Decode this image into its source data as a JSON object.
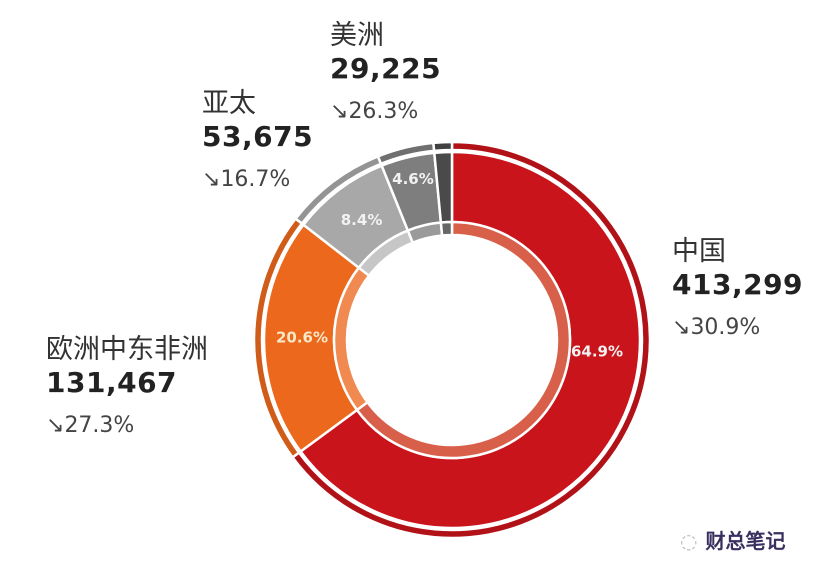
{
  "chart_data": {
    "type": "pie",
    "donut": true,
    "start": "12 o'clock, clockwise",
    "slices": [
      {
        "name": "中国",
        "value": 413299,
        "percent_label": "64.9%",
        "percent": 64.9,
        "change": "30.9%",
        "trend": "down",
        "color": "#c8141a",
        "inner_color": "#d8604a"
      },
      {
        "name": "欧洲中东非洲",
        "value": 131467,
        "percent_label": "20.6%",
        "percent": 20.6,
        "change": "27.3%",
        "trend": "down",
        "color": "#ec681c",
        "inner_color": "#f08a50"
      },
      {
        "name": "亚太",
        "value": 53675,
        "percent_label": "8.4%",
        "percent": 8.4,
        "change": "16.7%",
        "trend": "down",
        "color": "#a8a8a8",
        "inner_color": "#c6c6c6"
      },
      {
        "name": "美洲",
        "value": 29225,
        "percent_label": "4.6%",
        "percent": 4.6,
        "change": "26.3%",
        "trend": "down",
        "color": "#7e7e7e",
        "inner_color": "#9a9a9a"
      },
      {
        "name": "",
        "value": null,
        "percent_label": "",
        "percent": 1.5,
        "color": "#4a4a4a",
        "inner_color": "#666666"
      }
    ],
    "display_values": [
      "413,299",
      "131,467",
      "53,675",
      "29,225"
    ],
    "trend_icon": "↘"
  },
  "watermark": {
    "text": "财总笔记",
    "icon": "wechat-icon"
  }
}
